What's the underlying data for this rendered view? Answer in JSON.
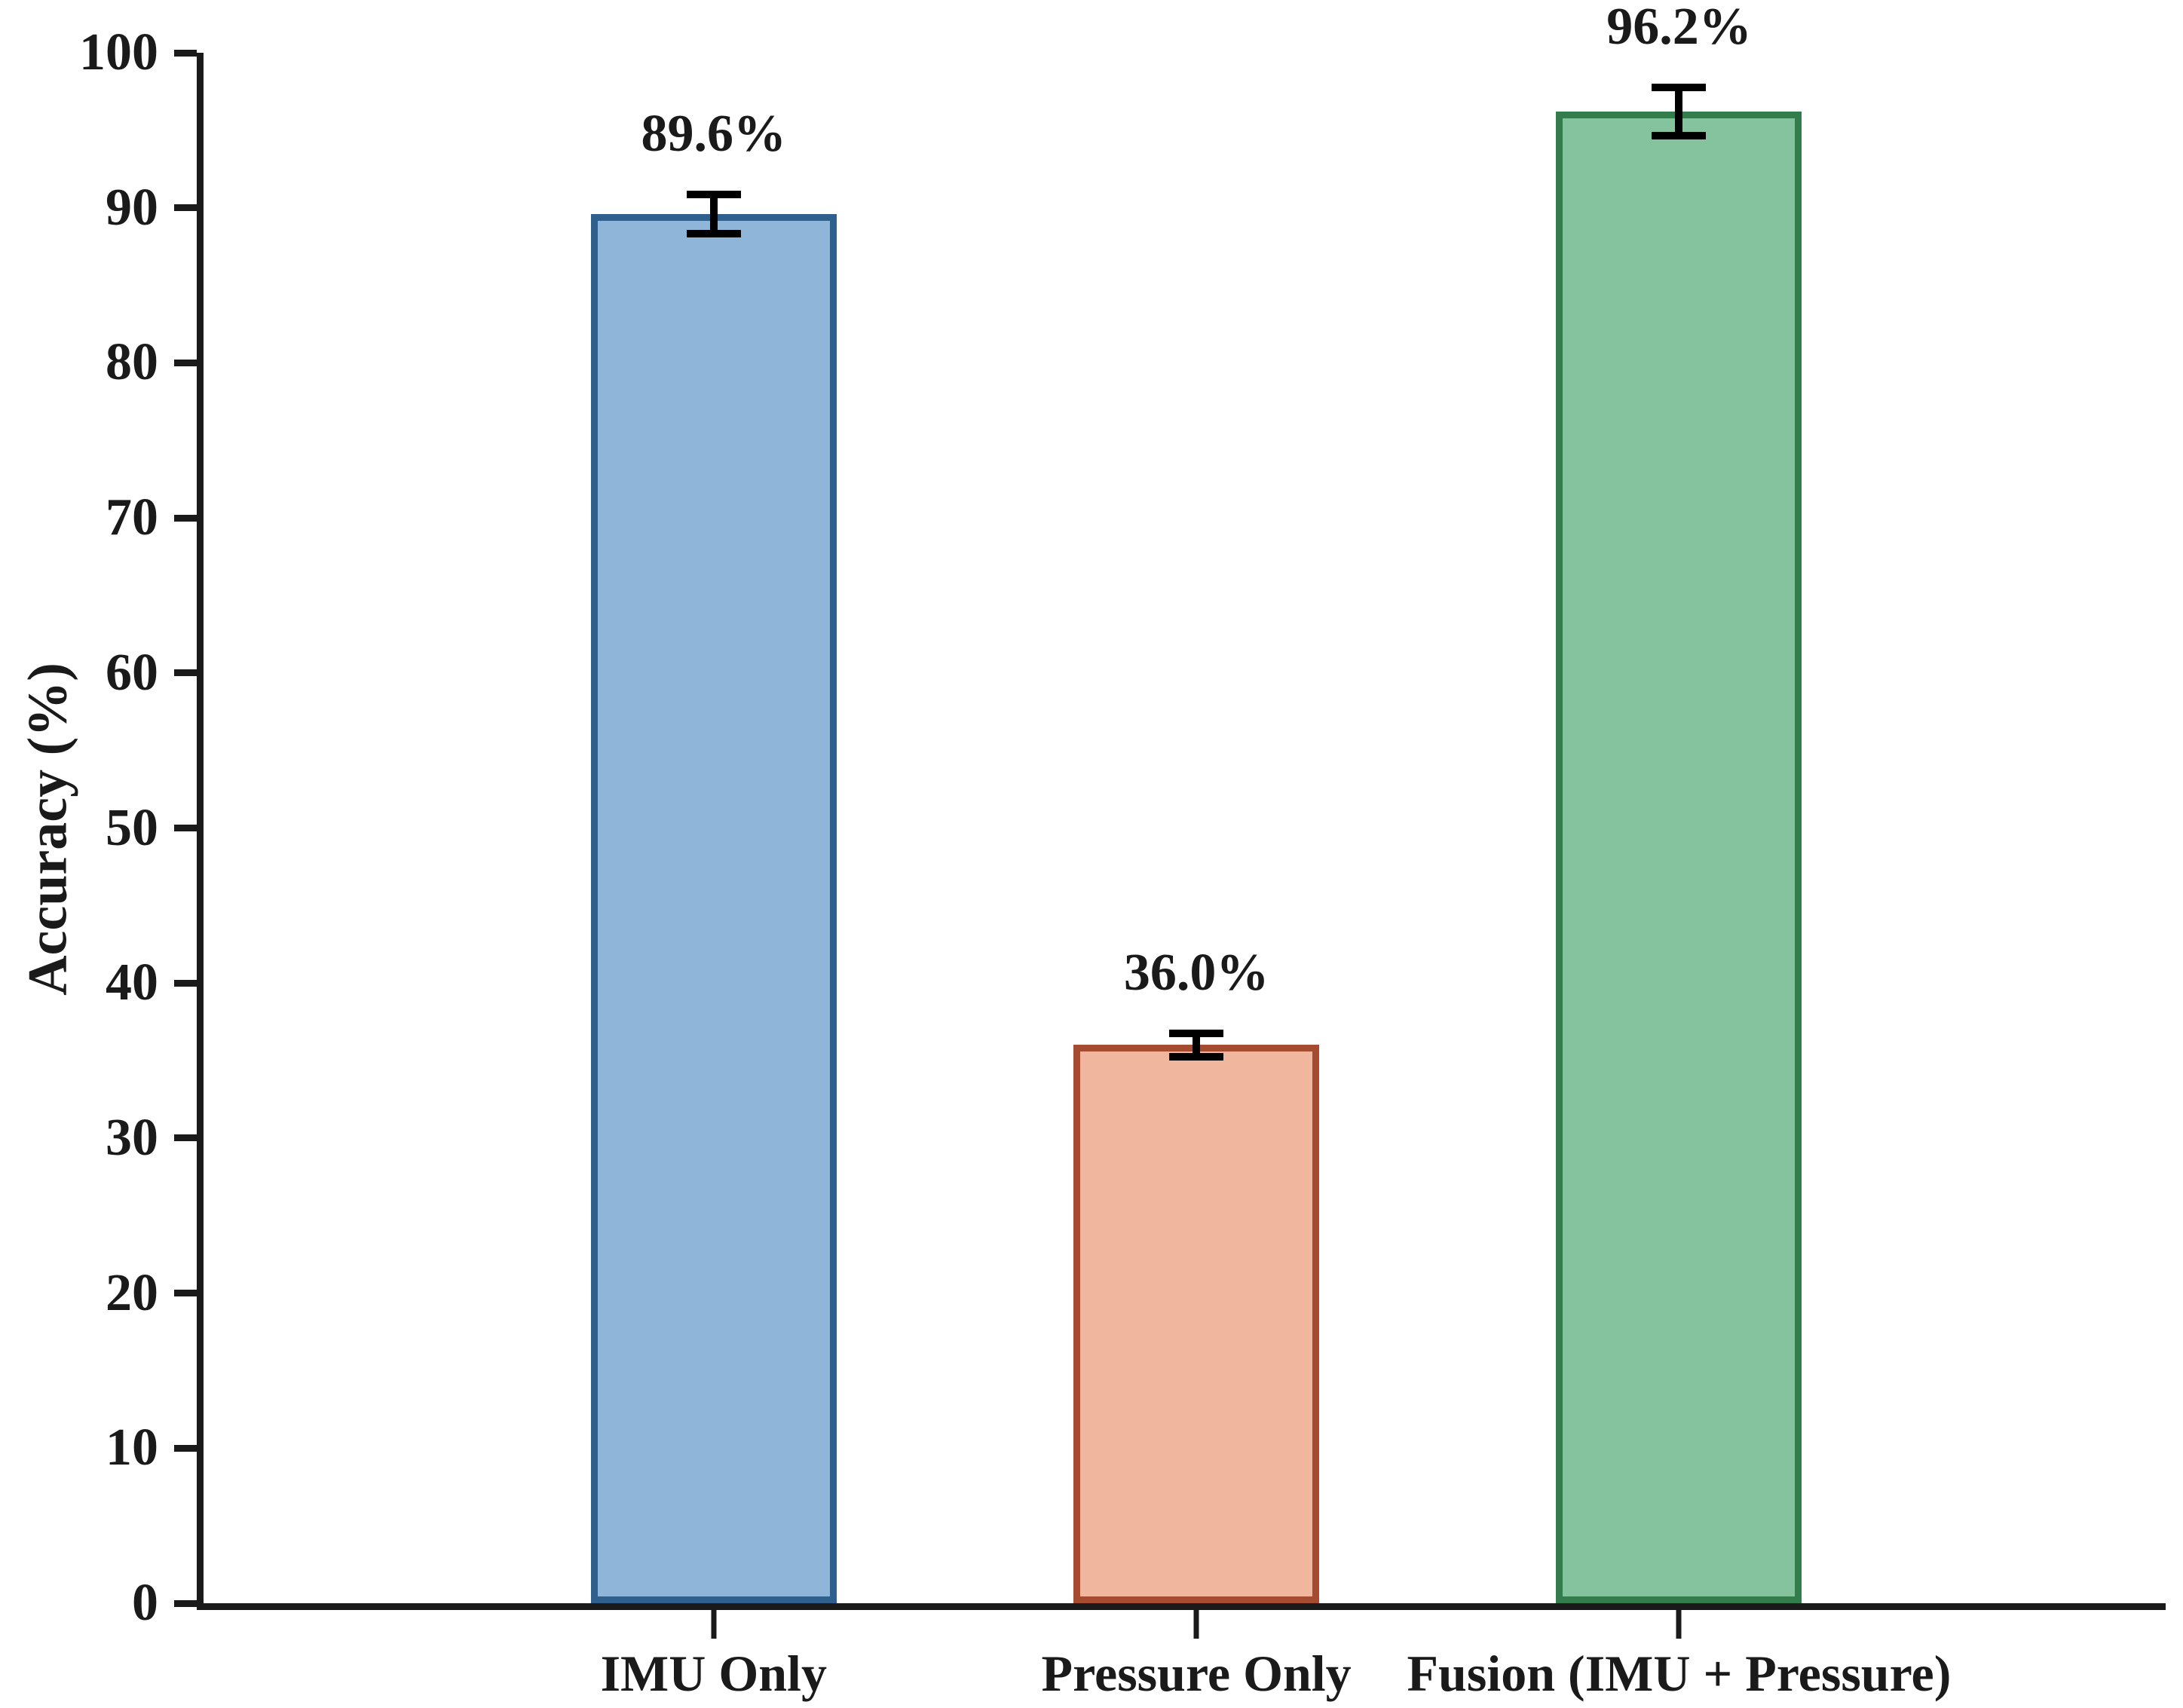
{
  "chart_data": {
    "type": "bar",
    "title": "",
    "xlabel": "",
    "ylabel": "Accuracy (%)",
    "categories": [
      "IMU Only",
      "Pressure Only",
      "Fusion (IMU + Pressure)"
    ],
    "values": [
      89.6,
      36.0,
      96.2
    ],
    "errors": [
      1.5,
      1.0,
      1.8
    ],
    "value_labels": [
      "89.6%",
      "36.0%",
      "96.2%"
    ],
    "ylim": [
      0,
      100
    ],
    "yticks": [
      0,
      10,
      20,
      30,
      40,
      50,
      60,
      70,
      80,
      90,
      100
    ],
    "grid": false,
    "legend": null,
    "background_color": "#ffffff",
    "axis_color": "#1a1a1a",
    "error_bar_color": "#000000",
    "bar_colors": [
      {
        "fill": "#8fb6d9",
        "edge": "#2f5f8c"
      },
      {
        "fill": "#f0b69e",
        "edge": "#a54b2f"
      },
      {
        "fill": "#85c29e",
        "edge": "#327d4b"
      }
    ]
  }
}
